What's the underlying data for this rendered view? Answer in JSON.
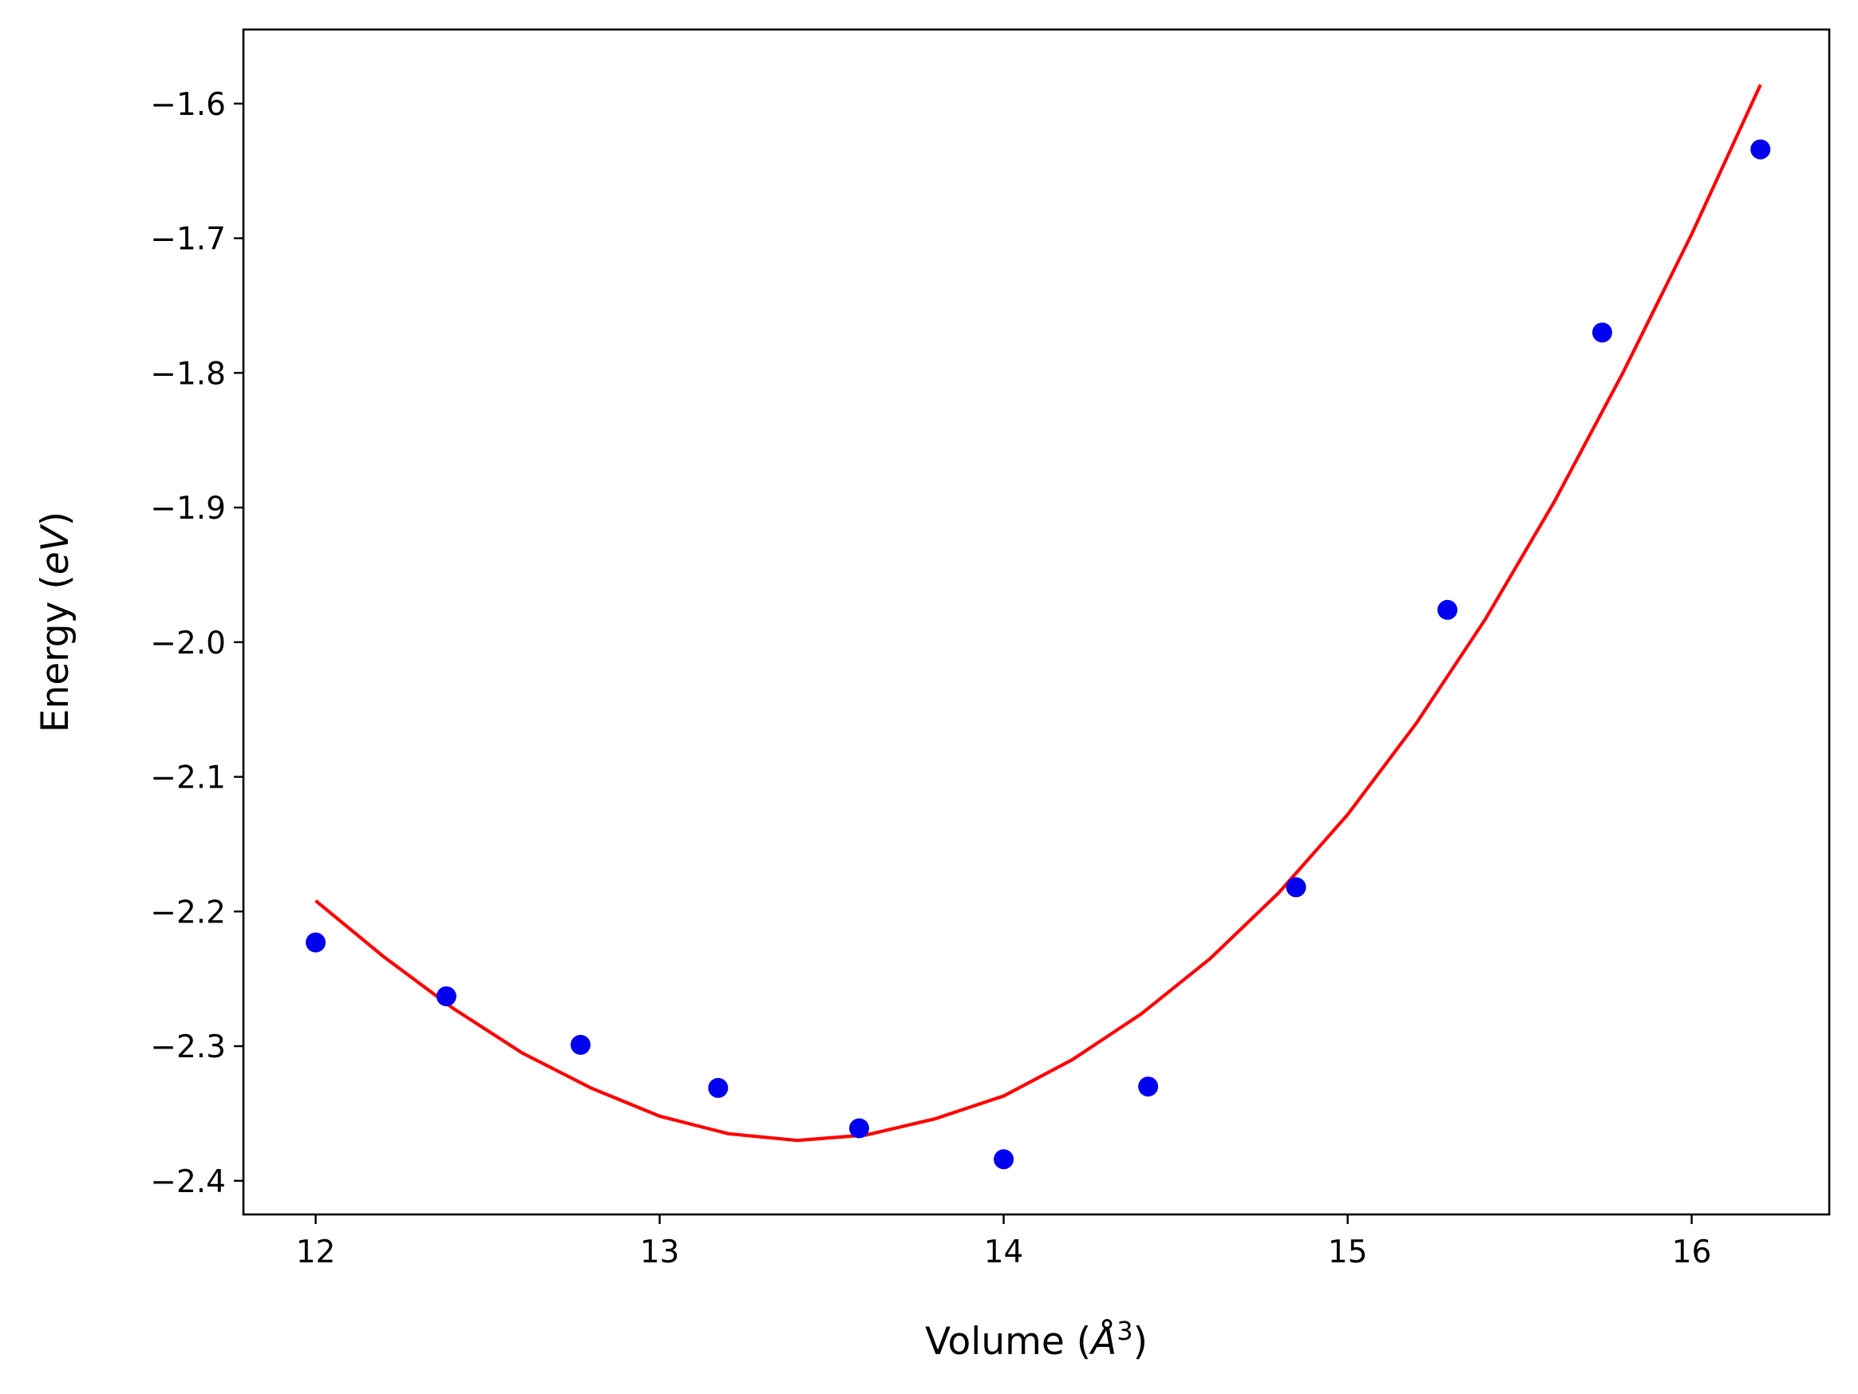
{
  "chart_data": {
    "type": "scatter",
    "title": "",
    "xlabel": "Volume (",
    "xlabel_symbol": "Å",
    "xlabel_exponent": "3",
    "xlabel_close": ")",
    "ylabel": "Energy (",
    "ylabel_unit": "eV",
    "ylabel_close": ")",
    "xlim": [
      11.79,
      16.4
    ],
    "ylim": [
      -2.425,
      -1.545
    ],
    "xticks": [
      12,
      13,
      14,
      15,
      16
    ],
    "xtick_labels": [
      "12",
      "13",
      "14",
      "15",
      "16"
    ],
    "yticks": [
      -2.4,
      -2.3,
      -2.2,
      -2.1,
      -2.0,
      -1.9,
      -1.8,
      -1.7,
      -1.6
    ],
    "ytick_labels": [
      "−2.4",
      "−2.3",
      "−2.2",
      "−2.1",
      "−2.0",
      "−1.9",
      "−1.8",
      "−1.7",
      "−1.6"
    ],
    "grid": false,
    "series": [
      {
        "kind": "scatter",
        "color": "#0000ee",
        "x": [
          12.0,
          12.38,
          12.77,
          13.17,
          13.58,
          14.0,
          14.42,
          14.85,
          15.29,
          15.74,
          16.2
        ],
        "y": [
          -2.223,
          -2.263,
          -2.299,
          -2.331,
          -2.361,
          -2.384,
          -2.33,
          -2.182,
          -1.976,
          -1.77,
          -1.634
        ]
      },
      {
        "kind": "line",
        "color": "#ff0000",
        "x": [
          12.0,
          12.2,
          12.4,
          12.6,
          12.8,
          13.0,
          13.2,
          13.4,
          13.6,
          13.8,
          14.0,
          14.2,
          14.4,
          14.6,
          14.8,
          15.0,
          15.2,
          15.4,
          15.6,
          15.8,
          16.0,
          16.2
        ],
        "y": [
          -2.192,
          -2.234,
          -2.272,
          -2.305,
          -2.331,
          -2.352,
          -2.365,
          -2.37,
          -2.366,
          -2.354,
          -2.337,
          -2.31,
          -2.276,
          -2.235,
          -2.186,
          -2.128,
          -2.06,
          -1.983,
          -1.896,
          -1.8,
          -1.697,
          -1.586
        ]
      }
    ]
  }
}
